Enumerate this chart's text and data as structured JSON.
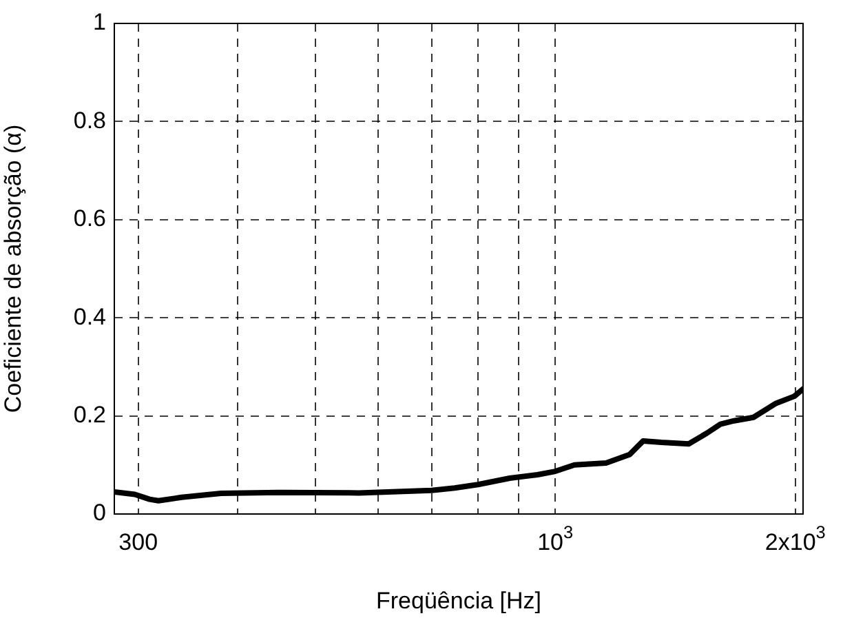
{
  "chart_data": {
    "type": "line",
    "xlabel": "Freqüência [Hz]",
    "ylabel": "Coeficiente de absorção (α)",
    "log": "x",
    "grid": true,
    "marker": "none",
    "line_style": "solid",
    "xlim": [
      280,
      2045
    ],
    "ylim": [
      0,
      1
    ],
    "xticks": [
      300,
      {
        "value": 400,
        "label": null
      },
      {
        "value": 500,
        "label": null
      },
      {
        "value": 600,
        "label": null
      },
      {
        "value": 700,
        "label": null
      },
      {
        "value": 800,
        "label": null
      },
      {
        "value": 900,
        "label": null
      },
      {
        "value": 1000,
        "label": "10$^{3}$"
      },
      {
        "value": 2000,
        "label": "2x10$^{3}$"
      }
    ],
    "yticks": [
      0,
      0.2,
      0.4,
      0.6,
      0.8,
      1
    ],
    "series": [
      {
        "color": "#000000",
        "x": [
          280,
          297,
          310,
          318,
          340,
          381,
          450,
          567,
          700,
          748,
          800,
          877,
          950,
          1000,
          1057,
          1158,
          1239,
          1289,
          1358,
          1470,
          1550,
          1611,
          1676,
          1772,
          1888,
          1994,
          2045
        ],
        "values": [
          0.045,
          0.04,
          0.03,
          0.027,
          0.034,
          0.042,
          0.044,
          0.043,
          0.048,
          0.053,
          0.06,
          0.073,
          0.08,
          0.087,
          0.1,
          0.104,
          0.121,
          0.149,
          0.146,
          0.143,
          0.165,
          0.183,
          0.19,
          0.197,
          0.225,
          0.24,
          0.255
        ]
      }
    ]
  }
}
